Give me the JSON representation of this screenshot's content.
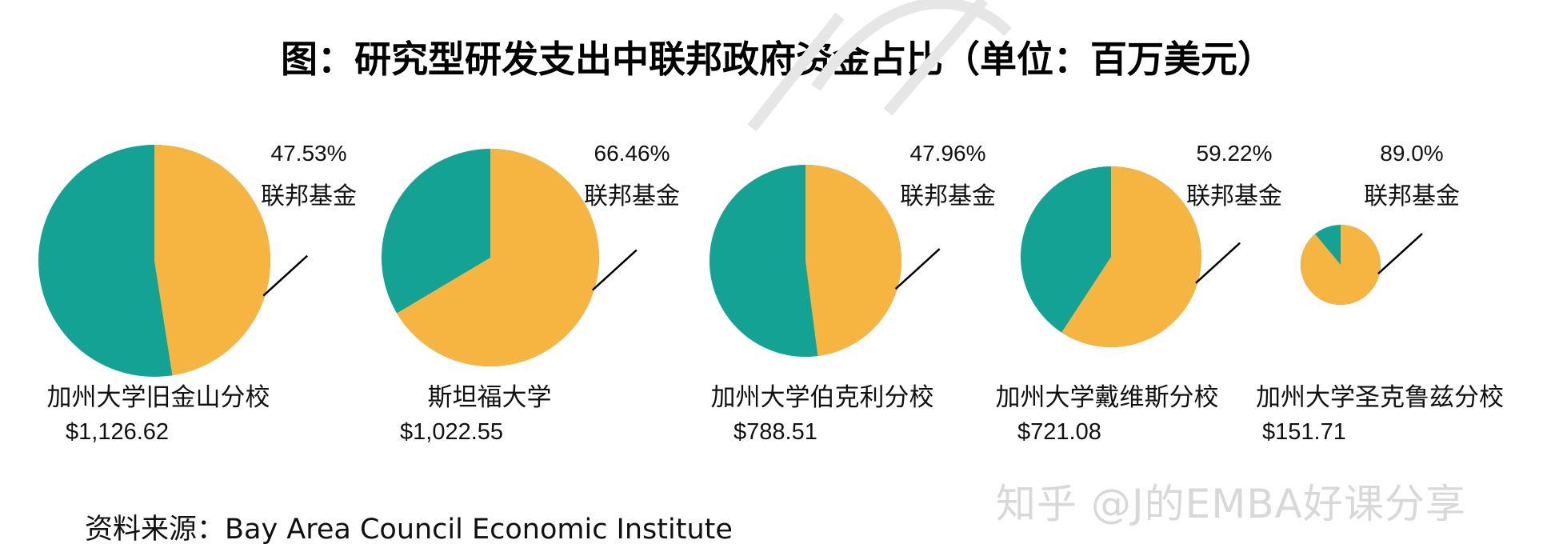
{
  "title": "图：研究型研发支出中联邦政府资金占比（单位：百万美元）",
  "source": "资料来源：Bay Area Council Economic Institute",
  "watermark": "知乎 @J的EMBA好课分享",
  "colors": {
    "federal": "#F6B540",
    "other": "#14A295"
  },
  "chart_data": {
    "type": "pie",
    "title": "图：研究型研发支出中联邦政府资金占比（单位：百万美元）",
    "slice_label": "联邦基金",
    "pies": [
      {
        "name": "加州大学旧金山分校",
        "amount": "$1,126.62",
        "total": 1126.62,
        "federal_pct": 47.53,
        "pct_label": "47.53%"
      },
      {
        "name": "斯坦福大学",
        "amount": "$1,022.55",
        "total": 1022.55,
        "federal_pct": 66.46,
        "pct_label": "66.46%"
      },
      {
        "name": "加州大学伯克利分校",
        "amount": "$788.51",
        "total": 788.51,
        "federal_pct": 47.96,
        "pct_label": "47.96%"
      },
      {
        "name": "加州大学戴维斯分校",
        "amount": "$721.08",
        "total": 721.08,
        "federal_pct": 59.22,
        "pct_label": "59.22%"
      },
      {
        "name": "加州大学圣克鲁兹分校",
        "amount": "$151.71",
        "total": 151.71,
        "federal_pct": 89.0,
        "pct_label": "89.0%"
      }
    ]
  }
}
